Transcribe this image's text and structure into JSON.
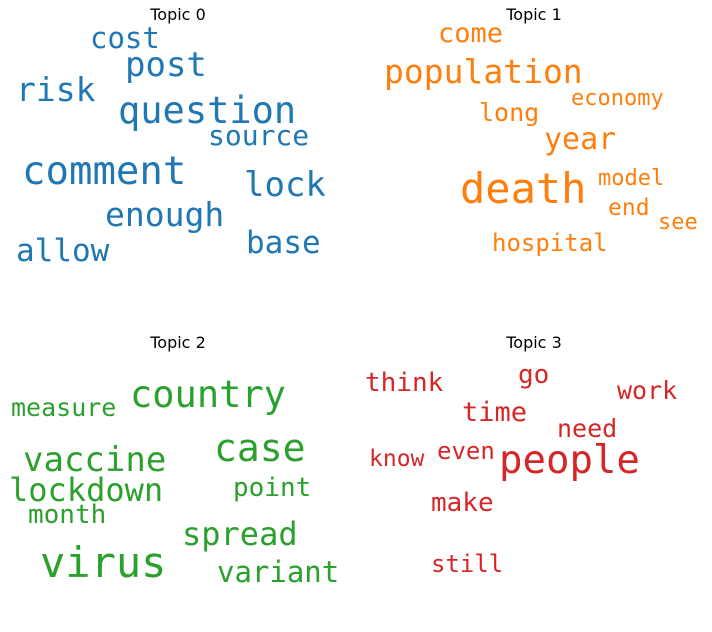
{
  "chart_data": {
    "type": "wordcloud",
    "panels": [
      {
        "title": "Topic 0",
        "color": "#1f77b4",
        "words": [
          "question",
          "comment",
          "post",
          "enough",
          "lock",
          "base",
          "risk",
          "allow",
          "source",
          "cost"
        ]
      },
      {
        "title": "Topic 1",
        "color": "#ff7f0e",
        "words": [
          "death",
          "population",
          "year",
          "hospital",
          "come",
          "long",
          "economy",
          "model",
          "end",
          "see"
        ]
      },
      {
        "title": "Topic 2",
        "color": "#2ca02c",
        "words": [
          "virus",
          "case",
          "country",
          "vaccine",
          "lockdown",
          "spread",
          "measure",
          "variant",
          "month",
          "point"
        ]
      },
      {
        "title": "Topic 3",
        "color": "#d62728",
        "words": [
          "people",
          "time",
          "think",
          "work",
          "need",
          "make",
          "even",
          "go",
          "know",
          "still"
        ]
      }
    ]
  }
}
